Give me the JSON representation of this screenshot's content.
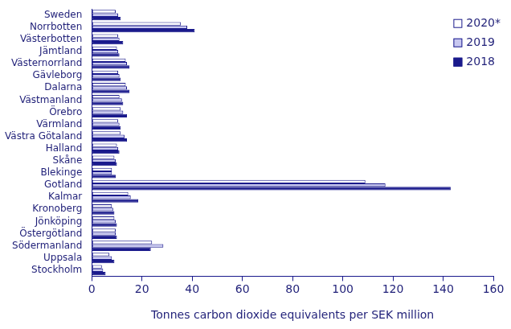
{
  "chart_data": {
    "type": "bar",
    "orientation": "horizontal",
    "x_label": "Tonnes carbon dioxide equivalents per SEK million",
    "categories": [
      "Sweden",
      "Norrbotten",
      "Västerbotten",
      "Jämtland",
      "Västernorrland",
      "Gävleborg",
      "Dalarna",
      "Västmanland",
      "Örebro",
      "Värmland",
      "Västra Götaland",
      "Halland",
      "Skåne",
      "Blekinge",
      "Gotland",
      "Kalmar",
      "Kronoberg",
      "Jönköping",
      "Östergötland",
      "Södermanland",
      "Uppsala",
      "Stockholm"
    ],
    "series": [
      {
        "name": "2020*",
        "color": "#ffffff",
        "values": [
          9.5,
          35.5,
          10.5,
          10,
          13.5,
          10.5,
          13.5,
          11,
          11.5,
          10.5,
          11.5,
          10,
          9,
          8,
          109,
          14.5,
          8,
          9,
          9.5,
          24,
          7,
          4
        ]
      },
      {
        "name": "2019",
        "color": "#c8c8f0",
        "values": [
          10.5,
          38,
          11,
          10.5,
          14,
          11,
          14,
          12,
          12.5,
          11,
          13,
          10.5,
          9.5,
          8,
          117,
          15.5,
          8.5,
          9.5,
          9.5,
          28.5,
          8,
          4.5
        ]
      },
      {
        "name": "2018",
        "color": "#1a1a8c",
        "values": [
          11.5,
          41,
          12.5,
          11,
          15,
          11.5,
          15,
          12.5,
          14,
          11.5,
          14,
          11,
          10,
          9.5,
          143,
          18.5,
          9,
          10,
          10,
          23.5,
          9,
          5.5
        ]
      }
    ],
    "xlim": [
      0,
      160
    ],
    "xticks": [
      0,
      20,
      40,
      60,
      80,
      100,
      120,
      140,
      160
    ],
    "grid": false,
    "legend": "upper right"
  }
}
